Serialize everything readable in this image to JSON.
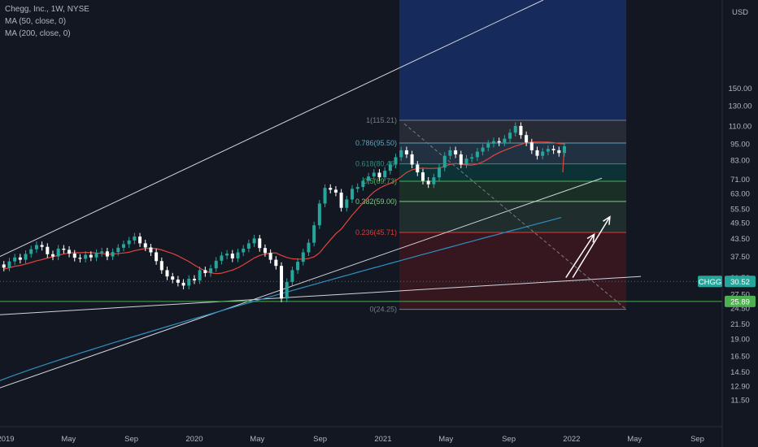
{
  "legend": {
    "symbol_line": "Chegg, Inc., 1W, NYSE",
    "ma50_line": "MA (50, close, 0)",
    "ma200_line": "MA (200, close, 0)"
  },
  "currency": "USD",
  "colors": {
    "background": "#131722",
    "bull": "#26a69a",
    "bear": "#ffffff",
    "ma50": "#e0443b",
    "ma200": "#2f8fc0",
    "trendline": "#d1d4dc",
    "support": "#4caf50",
    "price_badge": "#26a69a"
  },
  "chart_data": {
    "type": "candlestick",
    "y_scale": "log",
    "ylim": [
      10.5,
      160
    ],
    "y_ticks": [
      "150.00",
      "130.00",
      "110.00",
      "95.00",
      "83.00",
      "71.00",
      "63.00",
      "55.50",
      "49.50",
      "43.50",
      "37.50",
      "31.50",
      "27.50",
      "24.50",
      "21.50",
      "19.00",
      "16.50",
      "14.50",
      "12.90",
      "11.50"
    ],
    "x_ticks": [
      "2019",
      "May",
      "Sep",
      "2020",
      "May",
      "Sep",
      "2021",
      "May",
      "Sep",
      "2022",
      "May",
      "Sep"
    ],
    "last_price": {
      "symbol": "CHGG",
      "value": "30.52"
    },
    "support_level": "25.89",
    "fib_levels": [
      {
        "ratio": "1",
        "price": "115.21",
        "label": "1(115.21)"
      },
      {
        "ratio": "0.786",
        "price": "95.5",
        "label": "0.786(95.50)"
      },
      {
        "ratio": "0.618",
        "price": "80.46",
        "label": "0.618(80.46)"
      },
      {
        "ratio": "0.5",
        "price": "69.73",
        "label": "0.5(69.73)"
      },
      {
        "ratio": "0.382",
        "price": "59.00",
        "label": "0.382(59.00)"
      },
      {
        "ratio": "0.236",
        "price": "45.71",
        "label": "0.236(45.71)"
      },
      {
        "ratio": "0",
        "price": "24.25",
        "label": "0(24.25)"
      }
    ],
    "fib_extension_top": 160,
    "closes": [
      32.5,
      33.2,
      34.0,
      35.1,
      34.2,
      36.0,
      37.2,
      36.5,
      38.3,
      39.8,
      41.2,
      40.6,
      38.2,
      37.5,
      40.0,
      39.6,
      38.4,
      37.1,
      36.8,
      38.0,
      37.2,
      38.6,
      39.1,
      37.5,
      38.9,
      40.3,
      41.5,
      42.8,
      44.2,
      41.8,
      40.4,
      38.8,
      36.1,
      33.5,
      31.8,
      31.0,
      30.2,
      29.5,
      31.2,
      30.8,
      33.5,
      32.7,
      34.0,
      36.2,
      37.8,
      38.4,
      36.9,
      38.8,
      40.0,
      41.8,
      43.5,
      40.2,
      38.6,
      36.5,
      34.7,
      26.5,
      30.4,
      33.5,
      35.9,
      38.8,
      42.0,
      48.5,
      58.0,
      66.0,
      65.0,
      63.5,
      56.0,
      60.0,
      65.5,
      66.5,
      70.0,
      72.5,
      74.8,
      72.0,
      76.0,
      80.0,
      85.0,
      90.0,
      87.0,
      80.0,
      75.0,
      70.0,
      68.0,
      72.0,
      78.0,
      86.0,
      90.0,
      87.0,
      80.0,
      84.0,
      85.0,
      89.0,
      92.0,
      95.0,
      97.0,
      96.0,
      99.0,
      104.0,
      110.0,
      102.0,
      96.0,
      90.0,
      86.0,
      89.0,
      91.0,
      90.0,
      88.0,
      93.0,
      90.0,
      87.0,
      79.0,
      75.0,
      76.0,
      78.0,
      80.0,
      83.0,
      86.0,
      84.0,
      82.0,
      87.0,
      86.0,
      84.0,
      89.0,
      85.0,
      79.0,
      74.0,
      70.0,
      66.0,
      63.0,
      61.0,
      59.0,
      30.5,
      27.0,
      25.5,
      27.5,
      29.0,
      30.0,
      30.52
    ],
    "arrows": [
      {
        "from": [
          "2021-12-20",
          31.5
        ],
        "to": [
          "2022-02-14",
          45.0
        ]
      },
      {
        "from": [
          "2022-01-03",
          31.5
        ],
        "to": [
          "2022-03-14",
          52.0
        ]
      }
    ]
  }
}
